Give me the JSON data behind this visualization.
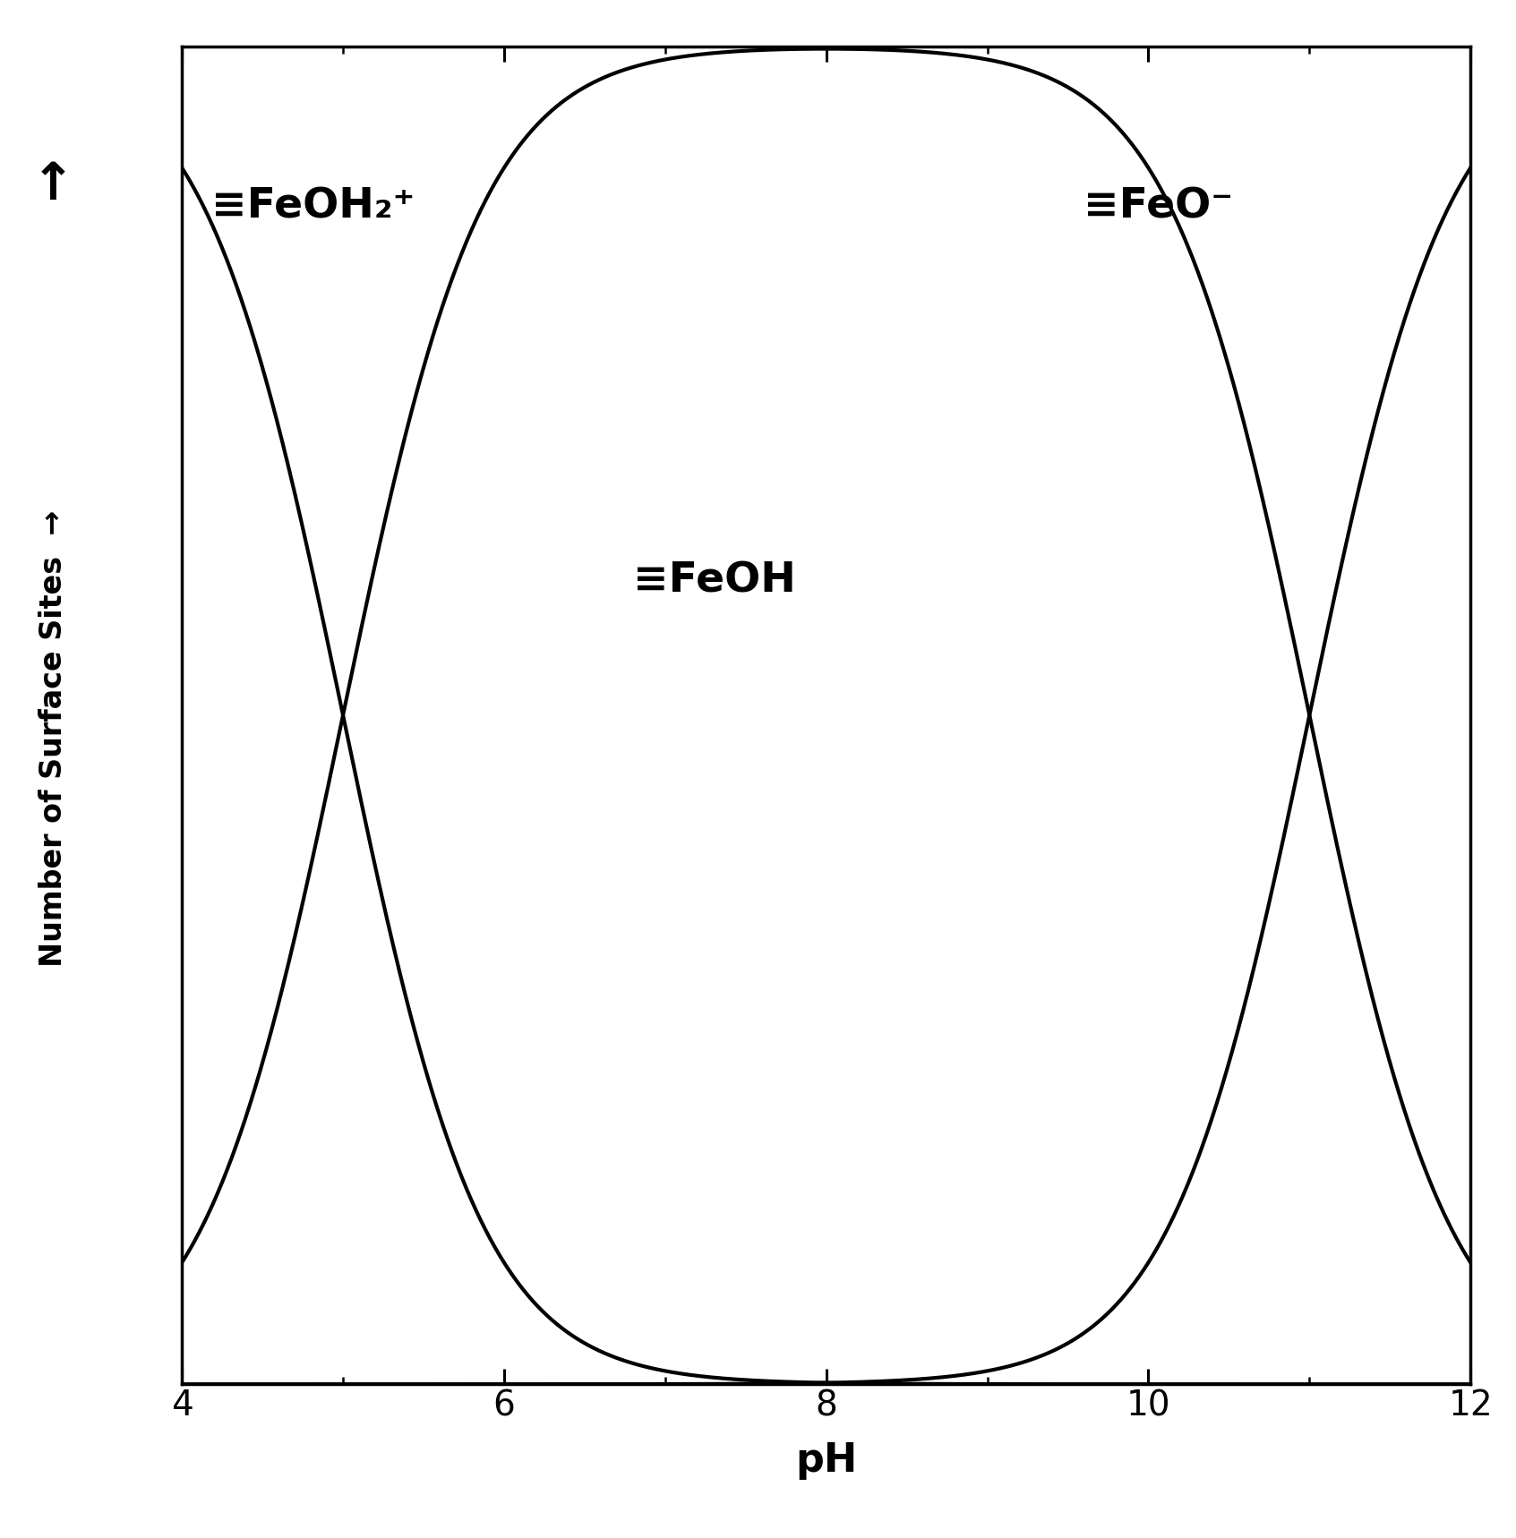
{
  "title": "",
  "xlabel": "pH",
  "ylabel": "Number of Surface Sites",
  "xlabel_fontsize": 32,
  "ylabel_fontsize": 24,
  "tick_fontsize": 28,
  "xlim": [
    4,
    12
  ],
  "ylim": [
    0,
    1.0
  ],
  "ph_range": [
    4,
    12
  ],
  "pKa1": 5.0,
  "pKa2": 11.0,
  "label_FeOH2": "≡FeOH₂⁺",
  "label_FeOH": "≡FeOH",
  "label_FeO": "≡FeO⁻",
  "line_color": "#000000",
  "line_width": 3.0,
  "background_color": "#ffffff",
  "annotation_fontsize": 34,
  "figsize": [
    16.93,
    17.18
  ],
  "dpi": 100
}
